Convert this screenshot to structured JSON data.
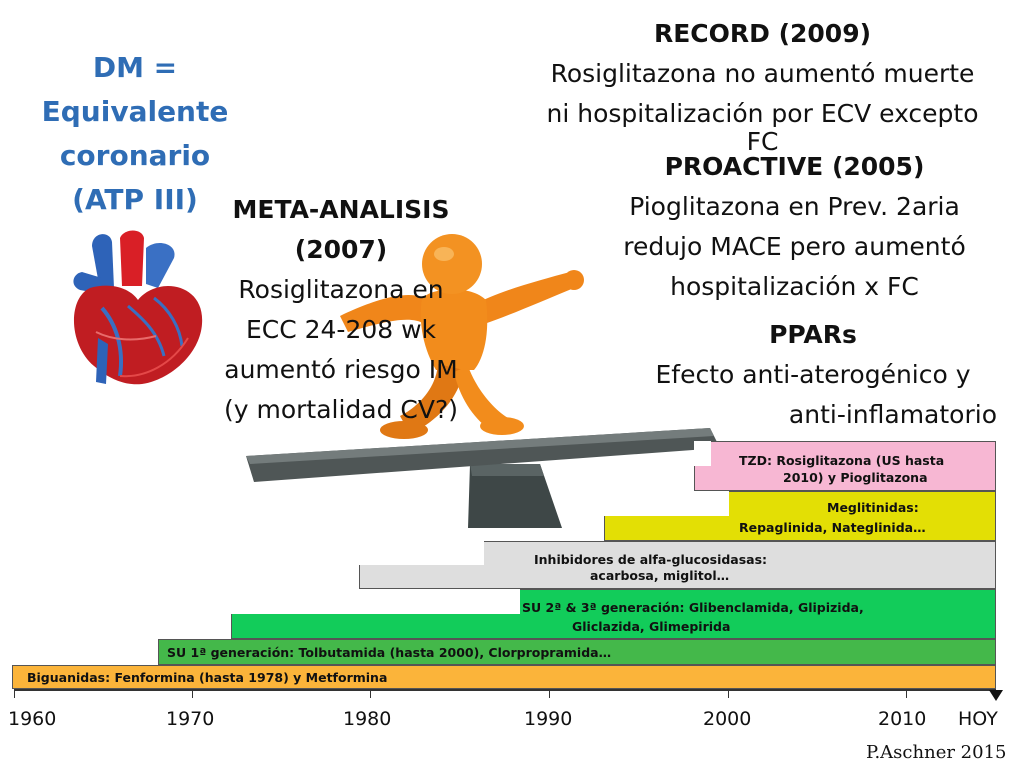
{
  "dm_block": {
    "line1": "DM =",
    "line2": "Equivalente",
    "line3": "coronario",
    "line4": "(ATP III)"
  },
  "meta_analisis": {
    "title1": "META-ANALISIS",
    "title2": "(2007)",
    "line1": "Rosiglitazona en",
    "line2": "ECC 24-208 wk",
    "line3": "aumentó riesgo IM",
    "line4": "(y mortalidad CV?)"
  },
  "record": {
    "title": "RECORD (2009)",
    "line1": "Rosiglitazona no aumentó muerte",
    "line2": "ni hospitalización por ECV excepto",
    "line3": "FC"
  },
  "proactive": {
    "title": "PROACTIVE (2005)",
    "line1": "Pioglitazona en Prev. 2aria",
    "line2": "redujo MACE pero aumentó",
    "line3": "hospitalización x FC"
  },
  "ppars": {
    "title": "PPARs",
    "line1": "Efecto anti-aterogénico y",
    "line2": "anti-inflamatorio"
  },
  "timeline": {
    "years": [
      "1960",
      "1970",
      "1980",
      "1990",
      "2000",
      "2010",
      "HOY"
    ],
    "bars": [
      {
        "label1": "TZD: Rosiglitazona (US hasta",
        "label2": "2010) y Pioglitazona",
        "color": "#f7b7d3"
      },
      {
        "label1": "Meglitinidas:",
        "label2": "Repaglinida, Nateglinida…",
        "color": "#e3df05"
      },
      {
        "label1": "Inhibidores de alfa-glucosidasas:",
        "label2": "acarbosa, miglitol…",
        "color": "#dedede"
      },
      {
        "label1": "SU 2ª & 3ª generación:  Glibenclamida, Glipizida,",
        "label2": "Gliclazida, Glimepirida",
        "color": "#12cc5a"
      },
      {
        "label1": "SU 1ª generación: Tolbutamida (hasta 2000), Clorpropramida…",
        "color": "#44b84a"
      },
      {
        "label1": "Biguanidas: Fenformina (hasta 1978) y Metformina",
        "color": "#fbb43a"
      }
    ]
  },
  "credit": "P.Aschner 2015"
}
